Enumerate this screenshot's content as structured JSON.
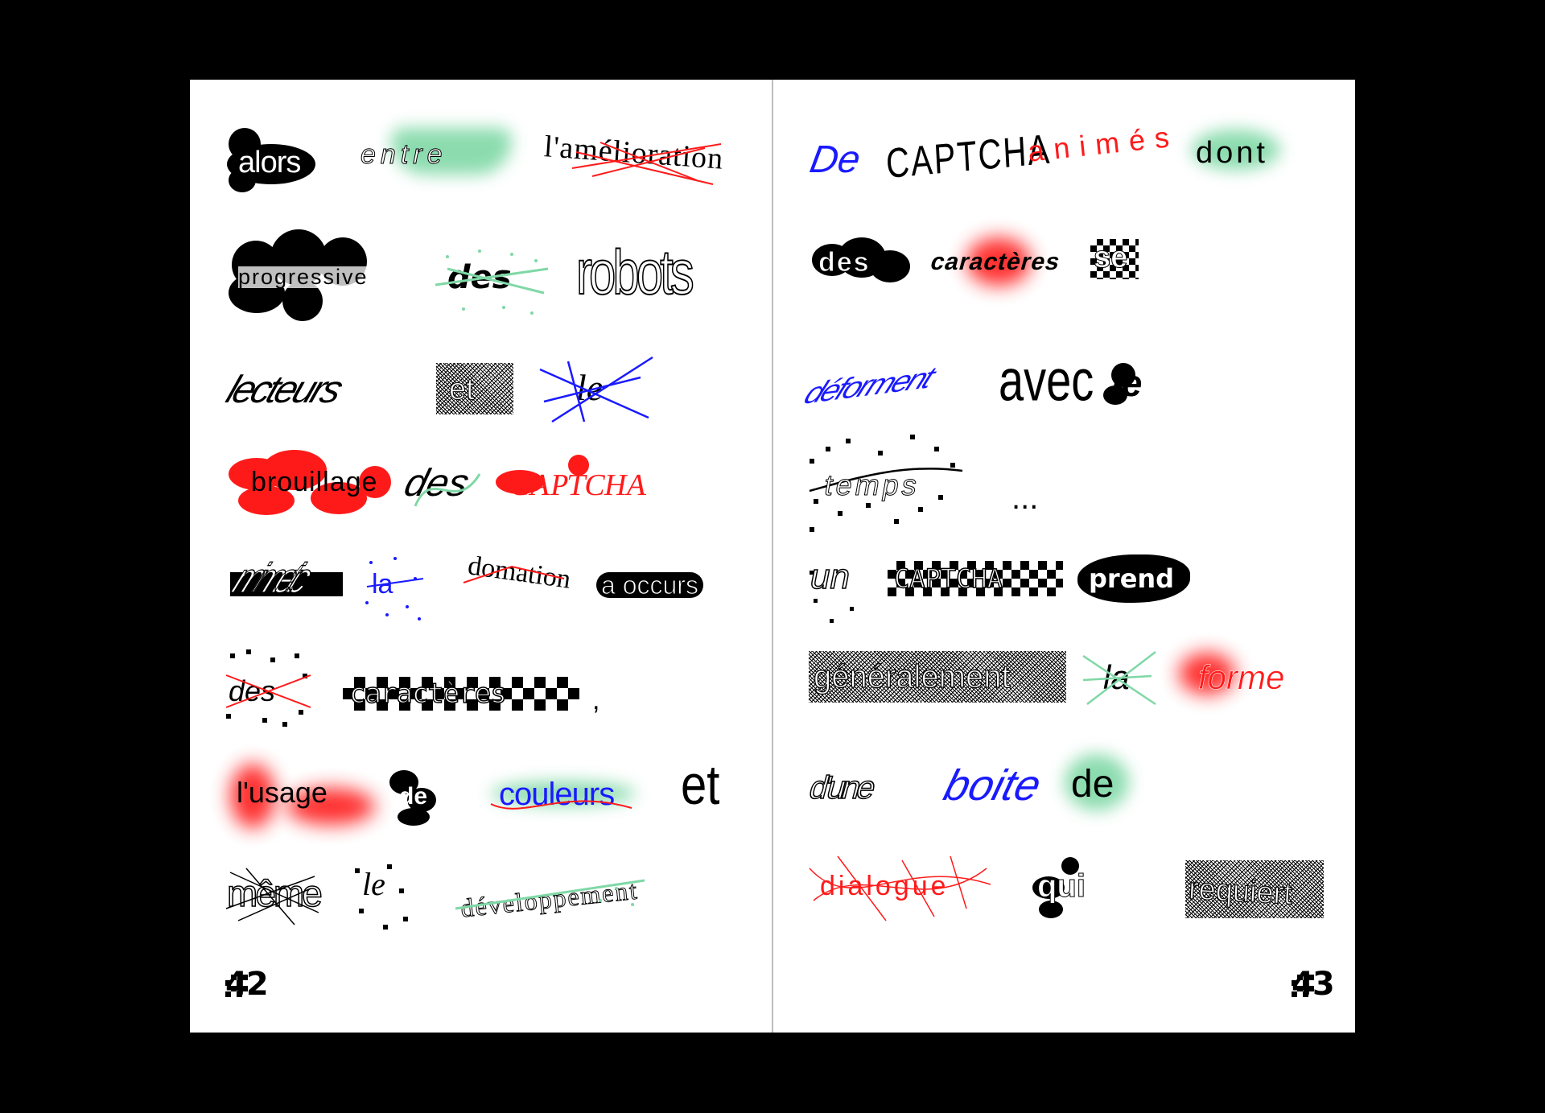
{
  "left_page": {
    "words": [
      "alors",
      "entre",
      "l'amélioration",
      "progressive",
      "des",
      "robots",
      "lecteurs",
      "et",
      "le",
      "brouillage",
      "des",
      "CAPTCHA",
      "mimetic",
      "la",
      "domation",
      "a occurs",
      "des",
      "caractères",
      ",",
      "l'usage",
      "de",
      "couleurs",
      "et",
      "même",
      "le",
      "développement"
    ],
    "page_number": "42"
  },
  "right_page": {
    "words": [
      "De",
      "CAPTCHA",
      "animés",
      "dont",
      "des",
      "caractères",
      "se",
      "déforment",
      "avec",
      "le",
      "temps",
      "...",
      "un",
      "CAPTCHA",
      "prend",
      "généralement",
      "la",
      "forme",
      "d'une",
      "boite",
      "de",
      "dialogue",
      "qui",
      "requiert"
    ],
    "page_number": "43"
  },
  "colors": {
    "background": "#000000",
    "page": "#ffffff",
    "red": "#ff1a1a",
    "blue": "#1a1aff",
    "green": "#7fd8a6"
  }
}
